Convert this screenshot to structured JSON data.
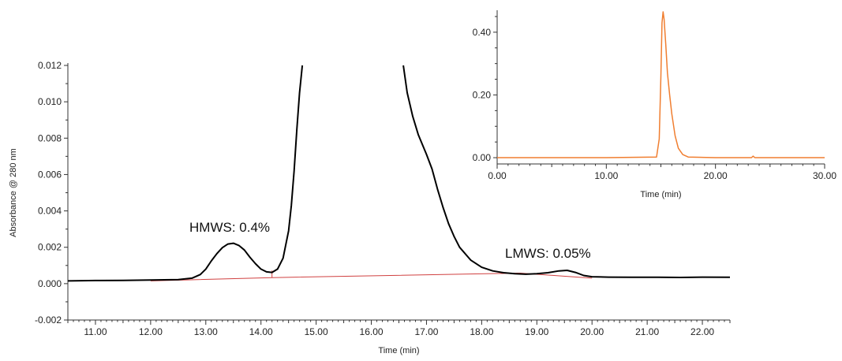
{
  "chart_data": [
    {
      "type": "line",
      "xlabel": "Time (min)",
      "ylabel": "Absorbance @ 280 nm",
      "xlim": [
        10.5,
        22.5
      ],
      "ylim": [
        -0.002,
        0.012
      ],
      "x_ticks": [
        "11.00",
        "12.00",
        "13.00",
        "14.00",
        "15.00",
        "16.00",
        "17.00",
        "18.00",
        "19.00",
        "20.00",
        "21.00",
        "22.00"
      ],
      "y_ticks": [
        "-0.002",
        "0.000",
        "0.002",
        "0.004",
        "0.006",
        "0.008",
        "0.010",
        "0.012"
      ],
      "grid": false,
      "colors": {
        "trace": "#000000",
        "baseline": "#d04040"
      },
      "series": [
        {
          "x": [
            10.5,
            11.0,
            11.5,
            12.0,
            12.5,
            12.75,
            12.9,
            13.0,
            13.1,
            13.2,
            13.3,
            13.4,
            13.5,
            13.6,
            13.7,
            13.8,
            13.9,
            14.0,
            14.1,
            14.2,
            14.3,
            14.4,
            14.5,
            14.55,
            14.6,
            14.65,
            14.7,
            14.75
          ],
          "y": [
            0.00015,
            0.00017,
            0.00018,
            0.0002,
            0.00022,
            0.0003,
            0.0005,
            0.0008,
            0.00125,
            0.00165,
            0.00198,
            0.00218,
            0.00222,
            0.0021,
            0.00185,
            0.00145,
            0.0011,
            0.0008,
            0.00065,
            0.00062,
            0.0008,
            0.0014,
            0.0029,
            0.0043,
            0.0062,
            0.0085,
            0.0105,
            0.012
          ],
          "clipped": "top"
        },
        {
          "x": [
            16.58,
            16.65,
            16.75,
            16.85,
            17.0,
            17.1,
            17.2,
            17.3,
            17.4,
            17.5,
            17.6,
            17.8,
            18.0,
            18.2,
            18.4,
            18.6,
            18.8,
            19.0,
            19.2,
            19.4,
            19.55,
            19.7,
            19.85,
            20.0,
            20.3,
            20.7,
            21.2,
            21.6,
            22.0,
            22.5
          ],
          "y": [
            0.012,
            0.0105,
            0.0092,
            0.0082,
            0.0071,
            0.0063,
            0.0052,
            0.0042,
            0.0033,
            0.0026,
            0.002,
            0.0013,
            0.0009,
            0.0007,
            0.0006,
            0.00055,
            0.00052,
            0.00055,
            0.0006,
            0.0007,
            0.00073,
            0.00062,
            0.00045,
            0.00038,
            0.00036,
            0.00035,
            0.00035,
            0.00034,
            0.00036,
            0.00035
          ],
          "clipped": "top"
        }
      ],
      "baseline": {
        "x": [
          12.0,
          14.2,
          18.7,
          20.0
        ],
        "y": [
          0.00015,
          0.00033,
          0.00058,
          0.0003
        ]
      },
      "baseline_ticks_x": [
        14.2
      ],
      "annotations": [
        "HMWS: 0.4%",
        "LMWS: 0.05%"
      ]
    },
    {
      "type": "line",
      "xlabel": "Time (min)",
      "ylabel": "",
      "xlim": [
        0,
        30
      ],
      "ylim": [
        -0.02,
        0.47
      ],
      "x_ticks": [
        "0.00",
        "10.00",
        "20.00",
        "30.00"
      ],
      "y_ticks": [
        "0.00",
        "0.20",
        "0.40"
      ],
      "grid": false,
      "colors": {
        "trace": "#f07e30"
      },
      "series": [
        {
          "x": [
            0,
            5,
            10,
            14.6,
            14.85,
            15.0,
            15.1,
            15.2,
            15.3,
            15.45,
            15.6,
            15.8,
            16.0,
            16.3,
            16.6,
            17.0,
            17.5,
            20,
            23.3,
            23.45,
            23.6,
            25,
            30
          ],
          "y": [
            0,
            0,
            0,
            0.002,
            0.06,
            0.26,
            0.43,
            0.465,
            0.44,
            0.36,
            0.27,
            0.2,
            0.14,
            0.07,
            0.03,
            0.01,
            0.002,
            0,
            0,
            0.005,
            0,
            0,
            0
          ]
        }
      ]
    }
  ]
}
